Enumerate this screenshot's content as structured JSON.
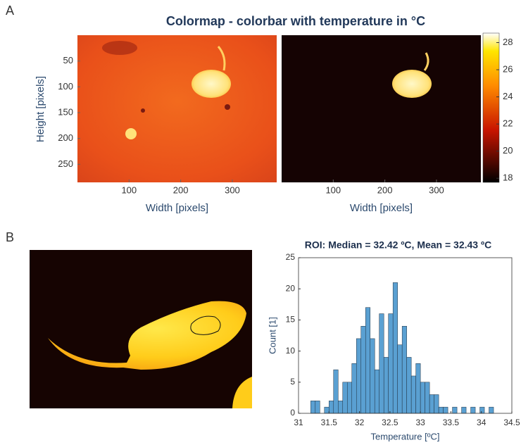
{
  "panel_labels": [
    "A",
    "B"
  ],
  "chart_data": [
    {
      "type": "thermal-image",
      "title": "Colormap - colorbar with temperature in °C",
      "xlabel": "Width [pixels]",
      "ylabel": "Height [pixels]",
      "xlim": [
        0,
        386
      ],
      "ylim": [
        285,
        0
      ],
      "xticks": [
        100,
        200,
        300
      ],
      "yticks": [
        50,
        100,
        150,
        200,
        250
      ],
      "clim": [
        17.7,
        28.7
      ],
      "cticks": [
        18,
        20,
        22,
        24,
        26,
        28
      ]
    },
    {
      "type": "histogram",
      "title": "ROI: Median = 32.42 ºC, Mean = 32.43 ºC",
      "xlabel": "Temperature [ºC]",
      "ylabel": "Count [1]",
      "color": "#5aa0d2",
      "bins": [
        31.2,
        31.275,
        31.35,
        31.425,
        31.5,
        31.575,
        31.65,
        31.725,
        31.8,
        31.875,
        31.95,
        32.025,
        32.1,
        32.175,
        32.25,
        32.325,
        32.4,
        32.475,
        32.55,
        32.625,
        32.7,
        32.775,
        32.85,
        32.925,
        33.0,
        33.075,
        33.15,
        33.225,
        33.3,
        33.375,
        33.45,
        33.525,
        33.6,
        33.675,
        33.75,
        33.825,
        33.9,
        33.975,
        34.05,
        34.125,
        34.2
      ],
      "values": [
        2,
        2,
        0,
        1,
        2,
        7,
        2,
        5,
        5,
        8,
        12,
        14,
        17,
        12,
        7,
        16,
        9,
        16,
        21,
        11,
        14,
        9,
        6,
        8,
        5,
        5,
        3,
        3,
        1,
        1,
        0,
        1,
        0,
        1,
        0,
        1,
        0,
        1,
        0,
        1
      ],
      "xlim": [
        31,
        34.5
      ],
      "ylim": [
        0,
        25
      ],
      "xticks": [
        31,
        31.5,
        32,
        32.5,
        33,
        33.5,
        34,
        34.5
      ],
      "yticks": [
        0,
        5,
        10,
        15,
        20,
        25
      ]
    }
  ]
}
